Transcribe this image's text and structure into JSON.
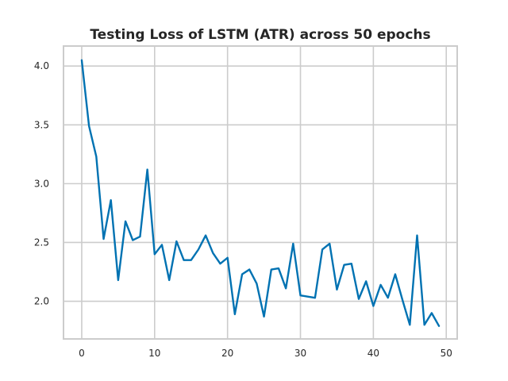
{
  "chart_data": {
    "type": "line",
    "title": "Testing Loss of LSTM (ATR) across 50 epochs",
    "xlabel": "",
    "ylabel": "",
    "xlim": [
      -2.5,
      51.5
    ],
    "ylim": [
      1.68,
      4.17
    ],
    "xticks": [
      0,
      10,
      20,
      30,
      40,
      50
    ],
    "yticks": [
      2.0,
      2.5,
      3.0,
      3.5,
      4.0
    ],
    "grid": true,
    "series": [
      {
        "color": "#0072b2",
        "x": [
          0,
          1,
          2,
          3,
          4,
          5,
          6,
          7,
          8,
          9,
          10,
          11,
          12,
          13,
          14,
          15,
          16,
          17,
          18,
          19,
          20,
          21,
          22,
          23,
          24,
          25,
          26,
          27,
          28,
          29,
          30,
          31,
          32,
          33,
          34,
          35,
          36,
          37,
          38,
          39,
          40,
          41,
          42,
          43,
          44,
          45,
          46,
          47,
          48,
          49
        ],
        "values": [
          4.05,
          3.49,
          3.23,
          2.53,
          2.86,
          2.18,
          2.68,
          2.52,
          2.55,
          3.12,
          2.4,
          2.48,
          2.18,
          2.51,
          2.35,
          2.35,
          2.44,
          2.56,
          2.41,
          2.32,
          2.37,
          1.89,
          2.23,
          2.27,
          2.15,
          1.87,
          2.27,
          2.28,
          2.11,
          2.49,
          2.05,
          2.04,
          2.03,
          2.44,
          2.49,
          2.1,
          2.31,
          2.32,
          2.02,
          2.17,
          1.96,
          2.14,
          2.03,
          2.23,
          2.01,
          1.8,
          2.56,
          1.8,
          1.9,
          1.79
        ]
      }
    ]
  }
}
